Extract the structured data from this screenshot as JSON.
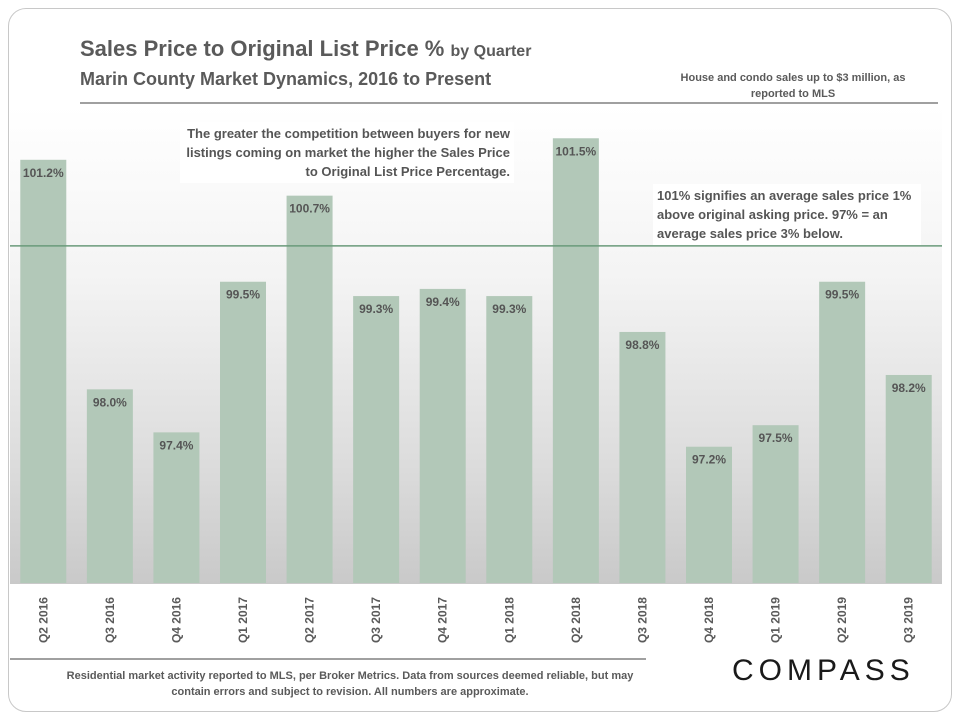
{
  "header": {
    "title": "Sales Price to Original List Price %",
    "title_suffix": "by Quarter",
    "subtitle": "Marin County Market Dynamics, 2016 to Present",
    "top_note": "House and condo sales up to $3 million, as reported to MLS"
  },
  "annotations": {
    "competition": "The greater the competition between buyers for new listings coming on market the higher the Sales Price to Original List Price Percentage.",
    "meaning": "101% signifies an average sales price 1% above original asking price. 97% = an average sales price 3% below."
  },
  "footer": {
    "note": "Residential market activity reported to MLS, per Broker Metrics. Data from sources deemed reliable, but may contain errors and subject to revision. All numbers are approximate.",
    "brand": "COMPASS"
  },
  "colors": {
    "bar": "#b2c8b8",
    "reference_line": "#6a9a7a",
    "label": "#555555",
    "text": "#5a5a5a"
  },
  "chart_data": {
    "type": "bar",
    "title": "Sales Price to Original List Price %",
    "categories": [
      "Q2 2016",
      "Q3 2016",
      "Q4 2016",
      "Q1 2017",
      "Q2 2017",
      "Q3 2017",
      "Q4 2017",
      "Q1 2018",
      "Q2 2018",
      "Q3 2018",
      "Q4 2018",
      "Q1 2019",
      "Q2 2019",
      "Q3 2019"
    ],
    "values": [
      101.2,
      98.0,
      97.4,
      99.5,
      100.7,
      99.3,
      99.4,
      99.3,
      101.5,
      98.8,
      97.2,
      97.5,
      99.5,
      98.2
    ],
    "data_labels": [
      "101.2%",
      "98.0%",
      "97.4%",
      "99.5%",
      "100.7%",
      "99.3%",
      "99.4%",
      "99.3%",
      "101.5%",
      "98.8%",
      "97.2%",
      "97.5%",
      "99.5%",
      "98.2%"
    ],
    "reference_line": 100,
    "ylim": [
      95.3,
      101.95
    ],
    "xlabel": "",
    "ylabel": "",
    "grid": false,
    "legend": "none"
  }
}
